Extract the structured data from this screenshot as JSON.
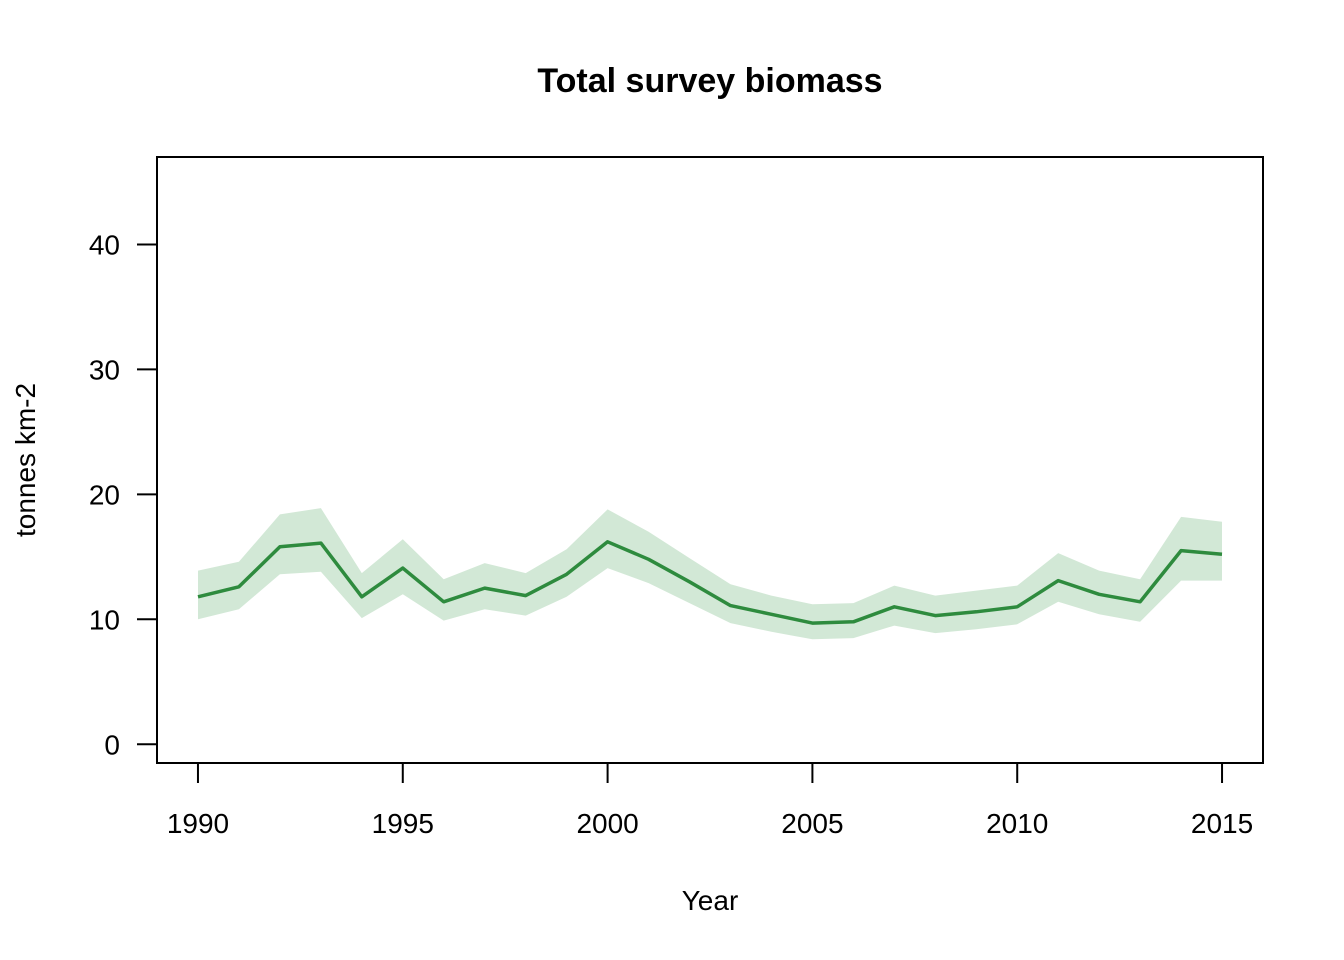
{
  "chart_data": {
    "type": "line",
    "title": "Total survey biomass",
    "xlabel": "Year",
    "ylabel": "tonnes km-2",
    "xlim": [
      1989,
      2016
    ],
    "ylim": [
      -1.5,
      47
    ],
    "xticks": [
      1990,
      1995,
      2000,
      2005,
      2010,
      2015
    ],
    "yticks": [
      0,
      10,
      20,
      30,
      40
    ],
    "grid": false,
    "legend": "none",
    "colors": {
      "line": "#2e8b3e",
      "band": "#d2e8d6",
      "frame": "#000000"
    },
    "x": [
      1990,
      1991,
      1992,
      1993,
      1994,
      1995,
      1996,
      1997,
      1998,
      1999,
      2000,
      2001,
      2002,
      2003,
      2004,
      2005,
      2006,
      2007,
      2008,
      2009,
      2010,
      2011,
      2012,
      2013,
      2014,
      2015
    ],
    "series": [
      {
        "values": [
          11.8,
          12.6,
          15.8,
          16.1,
          11.8,
          14.1,
          11.4,
          12.5,
          11.9,
          13.6,
          16.2,
          14.8,
          13.0,
          11.1,
          10.4,
          9.7,
          9.8,
          11.0,
          10.3,
          10.6,
          11.0,
          13.1,
          12.0,
          11.4,
          15.5,
          15.2
        ],
        "lower": [
          10.0,
          10.8,
          13.6,
          13.8,
          10.1,
          12.0,
          9.9,
          10.8,
          10.3,
          11.8,
          14.1,
          12.9,
          11.3,
          9.7,
          9.0,
          8.4,
          8.5,
          9.5,
          8.9,
          9.2,
          9.6,
          11.4,
          10.4,
          9.8,
          13.1,
          13.1
        ],
        "upper": [
          13.9,
          14.6,
          18.4,
          18.9,
          13.7,
          16.4,
          13.2,
          14.5,
          13.7,
          15.6,
          18.8,
          17.0,
          14.9,
          12.8,
          11.9,
          11.2,
          11.3,
          12.7,
          11.9,
          12.3,
          12.7,
          15.3,
          13.9,
          13.2,
          18.2,
          17.8
        ]
      }
    ]
  }
}
